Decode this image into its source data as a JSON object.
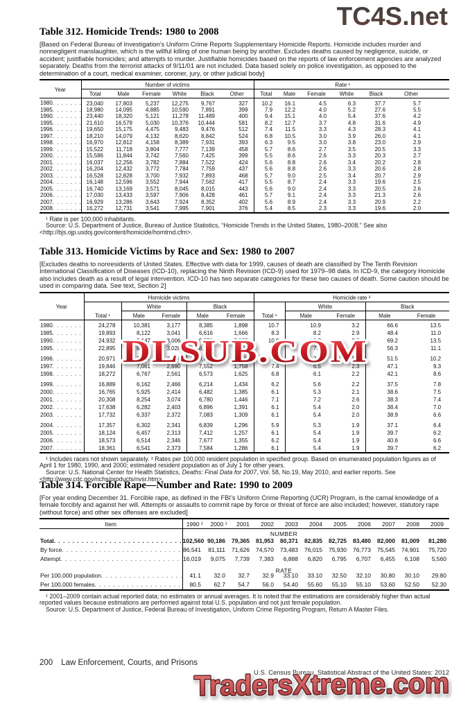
{
  "watermarks": {
    "top": "TC4S.net",
    "middle": "DLSUB.COM",
    "bottom": "TradersXtreme.com"
  },
  "footer": {
    "page_number": "200",
    "section_title": "Law Enforcement, Courts, and Prisons",
    "source": "U.S. Census Bureau, Statistical Abstract of the United States: 2012"
  },
  "t312": {
    "title": "Table 312. Homicide Trends: 1980 to 2008",
    "intro": "[Based on Federal Bureau of Investigation’s Uniform Crime Reports Supplementary Homicide Reports. Homicide includes murder and nonnegligent manslaughter, which is the willful killing of one human being by another. Excludes deaths caused by negligence, suicide, or accident; justifiable homicides; and attempts to murder. Justifiable homicides based on the reports of law enforcement agencies are analyzed separately. Deaths from the terrorist attacks of 9/11/01 are not included. Data based solely on police investigation, as opposed to the determination of a court, medical examiner, coroner, jury, or other judicial body]",
    "year_label": "Year",
    "group1": "Number of victims",
    "group2": "Rate ¹",
    "cols": [
      "Total",
      "Male",
      "Female",
      "White",
      "Black",
      "Other"
    ],
    "rows": [
      {
        "label": "1980",
        "values": [
          "23,040",
          "17,803",
          "5,237",
          "12,275",
          "9,767",
          "327",
          "10.2",
          "16.1",
          "4.5",
          "6.3",
          "37.7",
          "5.7"
        ]
      },
      {
        "label": "1985",
        "values": [
          "18,980",
          "14,095",
          "4,885",
          "10,590",
          "7,891",
          "399",
          "7.9",
          "12.2",
          "4.0",
          "5.2",
          "27.6",
          "5.5"
        ]
      },
      {
        "label": "1990",
        "values": [
          "23,440",
          "18,320",
          "5,121",
          "11,278",
          "11,489",
          "400",
          "9.4",
          "15.1",
          "4.0",
          "5.4",
          "37.6",
          "4.2"
        ]
      },
      {
        "label": "1995",
        "values": [
          "21,610",
          "16,579",
          "5,030",
          "10,376",
          "10,444",
          "581",
          "8.2",
          "12.7",
          "3.7",
          "4.8",
          "31.6",
          "4.9"
        ]
      },
      {
        "label": "1996",
        "values": [
          "19,650",
          "15,175",
          "4,475",
          "9,483",
          "9,476",
          "512",
          "7.4",
          "11.5",
          "3.3",
          "4.3",
          "28.3",
          "4.1"
        ]
      },
      {
        "label": "1997",
        "values": [
          "18,210",
          "14,079",
          "4,132",
          "8,620",
          "8,842",
          "524",
          "6.8",
          "10.5",
          "3.0",
          "3.9",
          "26.0",
          "4.1"
        ]
      },
      {
        "label": "1998",
        "values": [
          "16,970",
          "12,812",
          "4,158",
          "8,389",
          "7,931",
          "393",
          "6.3",
          "9.5",
          "3.0",
          "3.8",
          "23.0",
          "2.9"
        ]
      },
      {
        "label": "1999",
        "values": [
          "15,522",
          "11,718",
          "3,804",
          "7,777",
          "7,139",
          "458",
          "5.7",
          "8.6",
          "2.7",
          "3.5",
          "20.5",
          "3.3"
        ]
      },
      {
        "label": "2000",
        "values": [
          "15,586",
          "11,844",
          "3,742",
          "7,560",
          "7,425",
          "399",
          "5.5",
          "8.6",
          "2.6",
          "3.3",
          "20.3",
          "2.7"
        ]
      },
      {
        "label": "2001",
        "values": [
          "16,037",
          "12,256",
          "3,782",
          "7,884",
          "7,522",
          "424",
          "5.6",
          "8.8",
          "2.6",
          "3.4",
          "20.2",
          "2.8"
        ]
      },
      {
        "label": "2002",
        "values": [
          "16,204",
          "12,432",
          "3,772",
          "7,784",
          "7,759",
          "437",
          "5.6",
          "8.8",
          "2.6",
          "3.3",
          "20.6",
          "2.8"
        ]
      },
      {
        "label": "2003",
        "values": [
          "16,528",
          "12,828",
          "3,700",
          "7,932",
          "7,893",
          "468",
          "5.7",
          "9.0",
          "2.5",
          "3.4",
          "20.7",
          "2.9"
        ]
      },
      {
        "label": "2004",
        "values": [
          "16,148",
          "12,596",
          "3,552",
          "7,944",
          "7,562",
          "417",
          "5.5",
          "8.7",
          "2.4",
          "3.3",
          "19.6",
          "2.5"
        ]
      },
      {
        "label": "2005",
        "values": [
          "16,740",
          "13,169",
          "3,571",
          "8,045",
          "8,015",
          "443",
          "5.6",
          "9.0",
          "2.4",
          "3.3",
          "20.5",
          "2.6"
        ]
      },
      {
        "label": "2006",
        "values": [
          "17,030",
          "13,433",
          "3,597",
          "7,906",
          "8,428",
          "461",
          "5.7",
          "9.1",
          "2.4",
          "3.3",
          "21.3",
          "2.6"
        ]
      },
      {
        "label": "2007",
        "values": [
          "16,929",
          "13,286",
          "3,643",
          "7,924",
          "8,352",
          "402",
          "5.6",
          "8.9",
          "2.4",
          "3.3",
          "20.9",
          "2.2"
        ]
      },
      {
        "label": "2008",
        "values": [
          "16,272",
          "12,731",
          "3,541",
          "7,995",
          "7,901",
          "376",
          "5.4",
          "8.5",
          "2.3",
          "3.3",
          "19.6",
          "2.0"
        ]
      }
    ],
    "footnote1": "¹ Rate is per 100,000 inhabitants.",
    "footnote2": "Source: U.S. Department of Justice, Bureau of Justice Statistics, “Homicide Trends in the United States, 1980–2008.” See also <http://bjs.ojp.usdoj.gov/content/homicide/homtrnd.cfm>."
  },
  "t313": {
    "title": "Table 313. Homicide Victims by Race and Sex: 1980 to 2007",
    "intro": "[Excludes deaths to nonresidents of United States. Effective with data for 1999, causes of death are classified by The Tenth Revision International Classification of Diseases (ICD-10), replacing the Ninth Revision (ICD-9) used for 1979–98 data. In ICD-9, the category Homicide also includes death as a result of legal intervention. ICD-10 has two separate categories for these two causes of death. Some caution should be used in comparing data. See text, Section 2]",
    "year_label": "Year",
    "group1": "Homicide victims",
    "group2": "Homicide rate ²",
    "total_label": "Total ¹",
    "white_label": "White",
    "black_label": "Black",
    "male_label": "Male",
    "female_label": "Female",
    "rows": [
      {
        "label": "1980",
        "values": [
          "24,278",
          "10,381",
          "3,177",
          "8,385",
          "1,898",
          "10.7",
          "10.9",
          "3.2",
          "66.6",
          "13.5"
        ]
      },
      {
        "label": "1985",
        "values": [
          "19,893",
          "8,122",
          "3,041",
          "6,616",
          "1,666",
          "8.3",
          "8.2",
          "2.9",
          "48.4",
          "11.0"
        ]
      },
      {
        "label": "1990",
        "values": [
          "24,932",
          "9,147",
          "3,006",
          "9,981",
          "2,163",
          "10.0",
          "9.0",
          "2.8",
          "69.2",
          "13.5"
        ]
      },
      {
        "label": "1995",
        "values": [
          "22,895",
          "8,336",
          "3,028",
          "8,847",
          "1,936",
          "8.7",
          "7.8",
          "2.7",
          "56.3",
          "11.1"
        ]
      },
      {
        "label": "1996",
        "gap": true,
        "values": [
          "20,971",
          "7,717",
          "2,876",
          "8,064",
          "1,808",
          "7.9",
          "7.2",
          "2.5",
          "51.5",
          "10.2"
        ]
      },
      {
        "label": "1997",
        "values": [
          "19,846",
          "7,061",
          "2,690",
          "7,552",
          "1,758",
          "7.4",
          "6.5",
          "2.3",
          "47.1",
          "9.3"
        ]
      },
      {
        "label": "1998",
        "values": [
          "18,272",
          "6,767",
          "2,561",
          "6,573",
          "1,625",
          "6.8",
          "6.1",
          "2.2",
          "42.1",
          "8.6"
        ]
      },
      {
        "label": "1999",
        "gap": true,
        "values": [
          "16,889",
          "6,162",
          "2,466",
          "6,214",
          "1,434",
          "6.2",
          "5.6",
          "2.2",
          "37.5",
          "7.8"
        ]
      },
      {
        "label": "2000",
        "values": [
          "16,765",
          "5,925",
          "2,414",
          "6,482",
          "1,385",
          "6.1",
          "5.3",
          "2.1",
          "38.6",
          "7.5"
        ]
      },
      {
        "label": "2001",
        "values": [
          "20,308",
          "8,254",
          "3,074",
          "6,780",
          "1,446",
          "7.1",
          "7.2",
          "2.6",
          "38.3",
          "7.4"
        ]
      },
      {
        "label": "2002",
        "values": [
          "17,638",
          "6,282",
          "2,403",
          "6,896",
          "1,391",
          "6.1",
          "5.4",
          "2.0",
          "38.4",
          "7.0"
        ]
      },
      {
        "label": "2003",
        "values": [
          "17,732",
          "6,337",
          "2,372",
          "7,083",
          "1,309",
          "6.1",
          "5.4",
          "2.0",
          "38.9",
          "6.6"
        ]
      },
      {
        "label": "2004",
        "gap": true,
        "values": [
          "17,357",
          "6,302",
          "2,341",
          "6,839",
          "1,296",
          "5.9",
          "5.3",
          "1.9",
          "37.1",
          "6.4"
        ]
      },
      {
        "label": "2005",
        "values": [
          "18,124",
          "6,457",
          "2,313",
          "7,412",
          "1,257",
          "6.1",
          "5.4",
          "1.9",
          "39.7",
          "6.2"
        ]
      },
      {
        "label": "2006",
        "values": [
          "18,573",
          "6,514",
          "2,346",
          "7,677",
          "1,355",
          "6.2",
          "5.4",
          "1.9",
          "40.6",
          "6.6"
        ]
      },
      {
        "label": "2007",
        "values": [
          "18,361",
          "6,541",
          "2,373",
          "7,584",
          "1,286",
          "6.1",
          "5.4",
          "1.9",
          "39.7",
          "6.2"
        ]
      }
    ],
    "footnote1": "¹ Includes races not shown separately. ² Rates per 100,000 resident population in specified group. Based on enumerated population figures as of April 1 for 1980, 1990, and 2000; estimated resident population as of July 1 for other years.",
    "footnote2_pre": "Source: U.S. National Center for Health Statistics, ",
    "footnote2_italic": "Deaths: Final Data for 2007",
    "footnote2_post": ", Vol. 58, No.19, May 2010, and earlier reports. See <http://www.cdc.gov/nchs/products/nvsr.htm>."
  },
  "t314": {
    "title": "Table 314. Forcible Rape—Number and Rate: 1990 to 2009",
    "intro": "[For year ending December 31. Forcible rape, as defined in the FBI’s Uniform Crime Reporting (UCR) Program, is the carnal knowledge of a female forcibly and against her will. Attempts or assaults to commit rape by force or threat of force are also included; however, statutory rape (without force) and other sex offenses are excluded]",
    "item_label": "Item",
    "cols": [
      "1990 ¹",
      "2000 ¹",
      "2001",
      "2002",
      "2003",
      "2004",
      "2005",
      "2006",
      "2007",
      "2008",
      "2009"
    ],
    "rows": [
      {
        "type": "section",
        "label": "NUMBER"
      },
      {
        "type": "data",
        "label": "Total",
        "bold": true,
        "indent": true,
        "values": [
          "102,560",
          "90,186",
          "79,365",
          "81,953",
          "80,371",
          "82,835",
          "82,725",
          "83,480",
          "82,000",
          "81,009",
          "81,280"
        ]
      },
      {
        "type": "data",
        "label": "By force",
        "values": [
          "86,541",
          "81,111",
          "71,626",
          "74,570",
          "73,483",
          "76,015",
          "75,930",
          "76,773",
          "75,545",
          "74,901",
          "75,720"
        ]
      },
      {
        "type": "data",
        "label": "Attempt",
        "values": [
          "16,019",
          "9,075",
          "7,739",
          "7,383",
          "6,888",
          "6,820",
          "6,795",
          "6,707",
          "6,455",
          "6,108",
          "5,560"
        ]
      },
      {
        "type": "section",
        "label": "RATE",
        "gap": true
      },
      {
        "type": "data",
        "label": "Per 100,000 population",
        "values": [
          "41.1",
          "32.0",
          "32.7",
          "32.9",
          "33.10",
          "33.10",
          "32.50",
          "32.10",
          "30.80",
          "30.10",
          "29.80"
        ]
      },
      {
        "type": "data",
        "label": "Per 100,000 females",
        "values": [
          "80.5",
          "62.7",
          "54.7",
          "56.0",
          "54.40",
          "55.60",
          "55.10",
          "55.10",
          "53.60",
          "52.50",
          "52.30"
        ]
      }
    ],
    "footnote1": "¹ 2001–2009 contain actual reported data; no estimates or annual averages. It is noted that the estimations are considerably higher than actual reported values because estimations are performed against total U.S. population and not just female population.",
    "footnote2": "Source: U.S. Department of Justice, Federal Bureau of Investigation, Uniform Crime Reporting Program, Return A Master Files."
  }
}
